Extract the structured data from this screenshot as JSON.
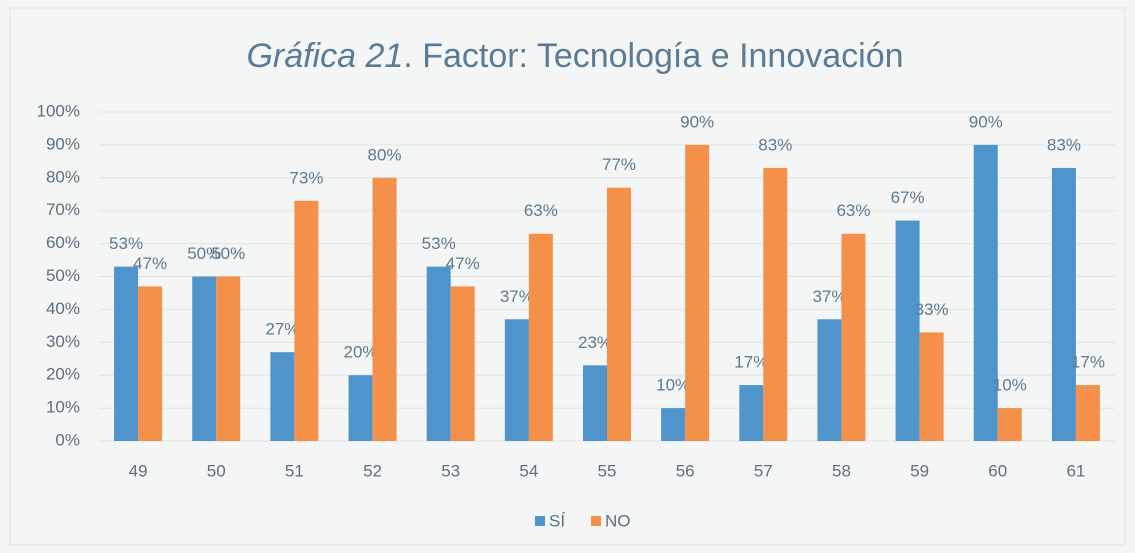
{
  "chart_data": {
    "type": "bar",
    "title": [
      {
        "text": "Gráfica 21",
        "italic": true
      },
      {
        "text": ". Factor: Tecnología e Innovación",
        "italic": false
      }
    ],
    "categories": [
      "49",
      "50",
      "51",
      "52",
      "53",
      "54",
      "55",
      "56",
      "57",
      "58",
      "59",
      "60",
      "61"
    ],
    "series": [
      {
        "name": "SÍ",
        "color": "#4f95cc",
        "values": [
          53,
          50,
          27,
          20,
          53,
          37,
          23,
          10,
          17,
          37,
          67,
          90,
          83
        ],
        "value_labels": [
          "53%",
          "50%",
          "27%",
          "20%",
          "53%",
          "37%",
          "23%",
          "10%",
          "17%",
          "37%",
          "67%",
          "90%",
          "83%"
        ]
      },
      {
        "name": "NO",
        "color": "#f5904a",
        "values": [
          47,
          50,
          73,
          80,
          47,
          63,
          77,
          90,
          83,
          63,
          33,
          10,
          17
        ],
        "value_labels": [
          "47%",
          "50%",
          "73%",
          "80%",
          "47%",
          "63%",
          "77%",
          "90%",
          "83%",
          "63%",
          "33%",
          "10%",
          "17%"
        ]
      }
    ],
    "ylim": [
      0,
      100
    ],
    "yticks": [
      {
        "value": 0,
        "label": "0%"
      },
      {
        "value": 10,
        "label": "10%"
      },
      {
        "value": 20,
        "label": "20%"
      },
      {
        "value": 30,
        "label": "30%"
      },
      {
        "value": 40,
        "label": "40%"
      },
      {
        "value": 50,
        "label": "50%"
      },
      {
        "value": 60,
        "label": "60%"
      },
      {
        "value": 70,
        "label": "70%"
      },
      {
        "value": 80,
        "label": "80%"
      },
      {
        "value": 90,
        "label": "90%"
      },
      {
        "value": 100,
        "label": "100%"
      }
    ],
    "grid": true,
    "legend": "bottom"
  }
}
